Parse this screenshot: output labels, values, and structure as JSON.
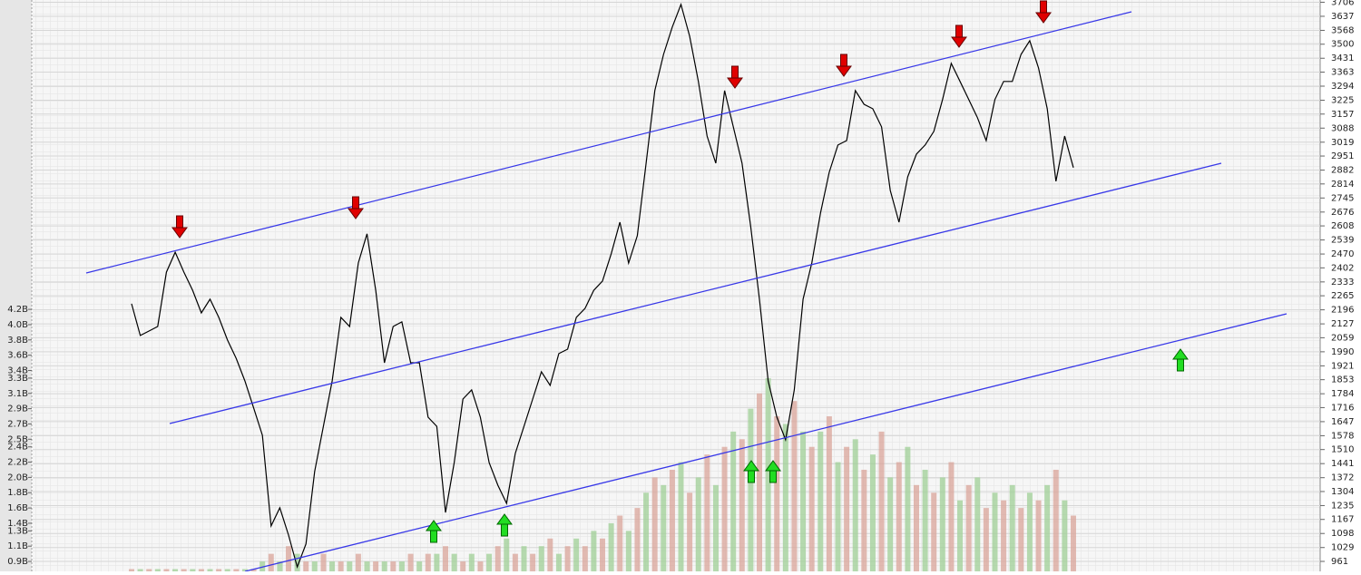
{
  "chart_data": {
    "type": "line",
    "categories": [
      null,
      null,
      null,
      null,
      null,
      null,
      null,
      null,
      null,
      null,
      null,
      null,
      null,
      null,
      null,
      null,
      null,
      null,
      null,
      null,
      null,
      null,
      null,
      null,
      null,
      null,
      null,
      null,
      null,
      null,
      null,
      null,
      null,
      null,
      null,
      null,
      null,
      null,
      null,
      null,
      null,
      null,
      null,
      null,
      null,
      null,
      null,
      null,
      null,
      null,
      null,
      null,
      null,
      null,
      null,
      null,
      null,
      null,
      null,
      null,
      null,
      null,
      null,
      null,
      null,
      null,
      null,
      null,
      null,
      null,
      null,
      null,
      null,
      null,
      null,
      null,
      null,
      null,
      null,
      null,
      null,
      null,
      null,
      null,
      null,
      null,
      null,
      null,
      null,
      null,
      null,
      null,
      null,
      null,
      null,
      null,
      null,
      null,
      null,
      null,
      null,
      null,
      null,
      null,
      null,
      null,
      null,
      null,
      null
    ],
    "series": [
      {
        "type": "line",
        "color": "#000000",
        "values": [
          2226,
          2070,
          2092,
          2114,
          2381,
          2479,
          2381,
          2292,
          2181,
          2248,
          2159,
          2048,
          1958,
          1847,
          1714,
          1580,
          1135,
          1224,
          1090,
          934,
          1046,
          1402,
          1624,
          1847,
          2159,
          2114,
          2426,
          2569,
          2292,
          1936,
          2114,
          2137,
          1936,
          1936,
          1669,
          1624,
          1201,
          1446,
          1758,
          1803,
          1669,
          1446,
          1335,
          1246,
          1491,
          1624,
          1758,
          1892,
          1825,
          1981,
          2003,
          2159,
          2203,
          2292,
          2337,
          2471,
          2626,
          2426,
          2560,
          2916,
          3272,
          3450,
          3584,
          3695,
          3539,
          3317,
          3049,
          2916,
          3272,
          3094,
          2916,
          2604,
          2248,
          1847,
          1669,
          1558,
          1803,
          2248,
          2426,
          2671,
          2871,
          3005,
          3027,
          3272,
          3205,
          3183,
          3094,
          2782,
          2626,
          2849,
          2960,
          3005,
          3072,
          3228,
          3406,
          3317,
          3228,
          3139,
          3027,
          3228,
          3317,
          3317,
          3450,
          3517,
          3383,
          3183,
          2827,
          3049,
          2894
        ]
      },
      {
        "type": "bar",
        "axis": "y2",
        "colors": [
          "#d9a49a",
          "#9fcf95"
        ],
        "values": [
          0.8,
          0.8,
          0.8,
          0.8,
          0.8,
          0.8,
          0.8,
          0.8,
          0.8,
          0.8,
          0.8,
          0.8,
          0.8,
          0.8,
          0.8,
          0.9,
          1.0,
          0.9,
          1.1,
          1.0,
          0.9,
          0.9,
          1.0,
          0.9,
          0.9,
          0.9,
          1.0,
          0.9,
          0.9,
          0.9,
          0.9,
          0.9,
          1.0,
          0.9,
          1.0,
          1.0,
          1.1,
          1.0,
          0.9,
          1.0,
          0.9,
          1.0,
          1.1,
          1.2,
          1.0,
          1.1,
          1.0,
          1.1,
          1.2,
          1.0,
          1.1,
          1.2,
          1.1,
          1.3,
          1.2,
          1.4,
          1.5,
          1.3,
          1.6,
          1.8,
          2.0,
          1.9,
          2.1,
          2.2,
          1.8,
          2.0,
          2.3,
          1.9,
          2.4,
          2.6,
          2.5,
          2.9,
          3.1,
          3.3,
          2.8,
          2.7,
          3.0,
          2.6,
          2.4,
          2.6,
          2.8,
          2.2,
          2.4,
          2.5,
          2.1,
          2.3,
          2.6,
          2.0,
          2.2,
          2.4,
          1.9,
          2.1,
          1.8,
          2.0,
          2.2,
          1.7,
          1.9,
          2.0,
          1.6,
          1.8,
          1.7,
          1.9,
          1.6,
          1.8,
          1.7,
          1.9,
          2.1,
          1.7,
          1.5
        ]
      }
    ],
    "ylim": [
      912,
      3717
    ],
    "yticks": [
      3706,
      3637,
      3568,
      3500,
      3431,
      3363,
      3294,
      3225,
      3157,
      3088,
      3019,
      2951,
      2882,
      2814,
      2745,
      2676,
      2608,
      2539,
      2470,
      2402,
      2333,
      2265,
      2196,
      2127,
      2059,
      1990,
      1921,
      1853,
      1784,
      1716,
      1647,
      1578,
      1510,
      1441,
      1372,
      1304,
      1235,
      1167,
      1098,
      1029,
      961
    ],
    "y2lim": [
      0.77,
      8.25
    ],
    "y2ticks": [
      {
        "value": 4.2,
        "label": "4.2B"
      },
      {
        "value": 4.0,
        "label": "4.0B"
      },
      {
        "value": 3.8,
        "label": "3.8B"
      },
      {
        "value": 3.6,
        "label": "3.6B"
      },
      {
        "value": 3.4,
        "label": "3.4B"
      },
      {
        "value": 3.3,
        "label": "3.3B"
      },
      {
        "value": 3.1,
        "label": "3.1B"
      },
      {
        "value": 2.9,
        "label": "2.9B"
      },
      {
        "value": 2.7,
        "label": "2.7B"
      },
      {
        "value": 2.5,
        "label": "2.5B"
      },
      {
        "value": 2.4,
        "label": "2.4B"
      },
      {
        "value": 2.2,
        "label": "2.2B"
      },
      {
        "value": 2.0,
        "label": "2.0B"
      },
      {
        "value": 1.8,
        "label": "1.8B"
      },
      {
        "value": 1.6,
        "label": "1.6B"
      },
      {
        "value": 1.4,
        "label": "1.4B"
      },
      {
        "value": 1.3,
        "label": "1.3B"
      },
      {
        "value": 1.1,
        "label": "1.1B"
      },
      {
        "value": 0.9,
        "label": "0.9B"
      }
    ],
    "grid": true
  }
}
